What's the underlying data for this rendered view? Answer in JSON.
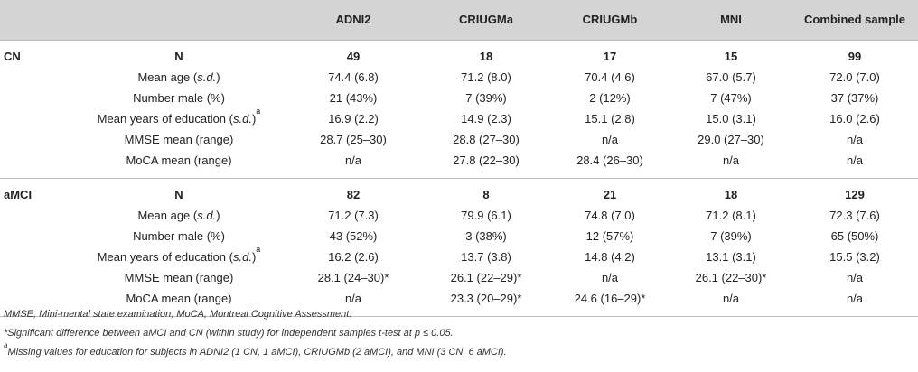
{
  "header": {
    "columns": [
      "",
      "",
      "ADNI2",
      "CRIUGMa",
      "CRIUGMb",
      "MNI",
      "Combined sample"
    ]
  },
  "sections": [
    {
      "group": "CN",
      "rows": [
        {
          "label": "N",
          "values": [
            "49",
            "18",
            "17",
            "15",
            "99"
          ]
        },
        {
          "label": "Mean age (s.d.)",
          "values": [
            "74.4 (6.8)",
            "71.2 (8.0)",
            "70.4 (4.6)",
            "67.0 (5.7)",
            "72.0 (7.0)"
          ]
        },
        {
          "label": "Number male (%)",
          "values": [
            "21 (43%)",
            "7 (39%)",
            "2 (12%)",
            "7 (47%)",
            "37 (37%)"
          ]
        },
        {
          "label": "Mean years of education (s.d.)",
          "label_sup": "a",
          "values": [
            "16.9 (2.2)",
            "14.9 (2.3)",
            "15.1 (2.8)",
            "15.0 (3.1)",
            "16.0 (2.6)"
          ]
        },
        {
          "label": "MMSE mean (range)",
          "values": [
            "28.7 (25–30)",
            "28.8 (27–30)",
            "n/a",
            "29.0 (27–30)",
            "n/a"
          ]
        },
        {
          "label": "MoCA mean (range)",
          "values": [
            "n/a",
            "27.8 (22–30)",
            "28.4 (26–30)",
            "n/a",
            "n/a"
          ]
        }
      ]
    },
    {
      "group": "aMCI",
      "rows": [
        {
          "label": "N",
          "values": [
            "82",
            "8",
            "21",
            "18",
            "129"
          ]
        },
        {
          "label": "Mean age (s.d.)",
          "values": [
            "71.2 (7.3)",
            "79.9 (6.1)",
            "74.8 (7.0)",
            "71.2 (8.1)",
            "72.3 (7.6)"
          ]
        },
        {
          "label": "Number male (%)",
          "values": [
            "43 (52%)",
            "3 (38%)",
            "12 (57%)",
            "7 (39%)",
            "65 (50%)"
          ]
        },
        {
          "label": "Mean years of education (s.d.)",
          "label_sup": "a",
          "values": [
            "16.2 (2.6)",
            "13.7 (3.8)",
            "14.8 (4.2)",
            "13.1 (3.1)",
            "15.5 (3.2)"
          ]
        },
        {
          "label": "MMSE mean (range)",
          "values": [
            "28.1 (24–30)*",
            "26.1 (22–29)*",
            "n/a",
            "26.1 (22–30)*",
            "n/a"
          ]
        },
        {
          "label": "MoCA mean (range)",
          "values": [
            "n/a",
            "23.3 (20–29)*",
            "24.6 (16–29)*",
            "n/a",
            "n/a"
          ]
        }
      ]
    }
  ],
  "footnotes": {
    "abbrev": "MMSE, Mini-mental state examination; MoCA, Montreal Cognitive Assessment.",
    "star": "*Significant difference between aMCI and CN (within study) for independent samples t-test at p ≤ 0.05.",
    "a_mark": "a",
    "a_text": "Missing values for education for subjects in ADNI2 (1 CN, 1 aMCI), CRIUGMb (2 aMCI), and MNI (3 CN, 6 aMCI)."
  }
}
